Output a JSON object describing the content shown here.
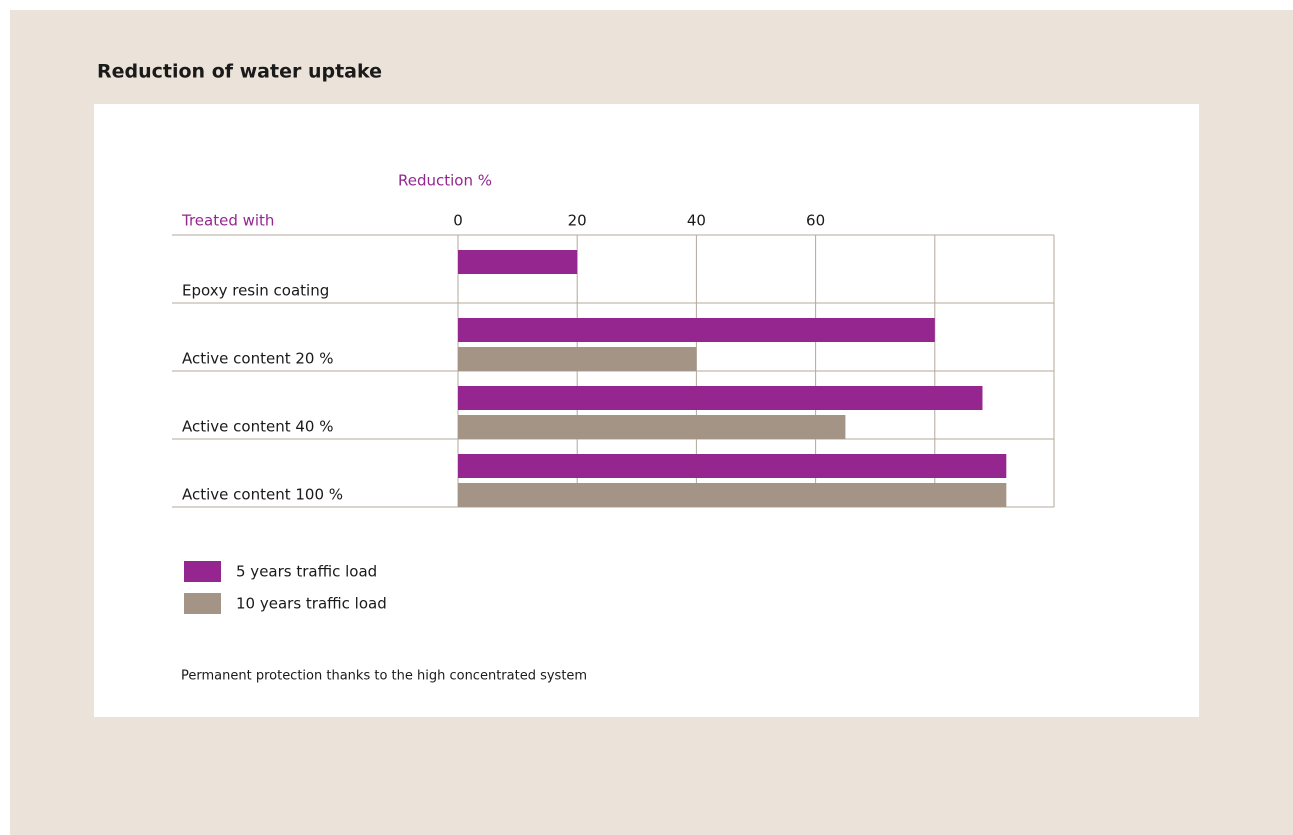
{
  "chart_data": {
    "type": "barh",
    "title": "Reduction of water uptake",
    "x_label": "Reduction %",
    "y_label": "Treated with",
    "categories": [
      "Epoxy resin coating",
      "Active content 20 %",
      "Active content 40 %",
      "Active content 100 %"
    ],
    "series": [
      {
        "name": "5 years traffic load",
        "color": "#952690",
        "values": [
          20,
          80,
          88,
          92
        ]
      },
      {
        "name": "10 years traffic load",
        "color": "#a39486",
        "values": [
          null,
          40,
          65,
          92
        ]
      }
    ],
    "xlim": [
      0,
      100
    ],
    "xticks": [
      0,
      20,
      40,
      60,
      {
        "value": 80,
        "label": null
      }
    ],
    "grid": true,
    "note": "Permanent protection thanks to the high concentrated system"
  }
}
